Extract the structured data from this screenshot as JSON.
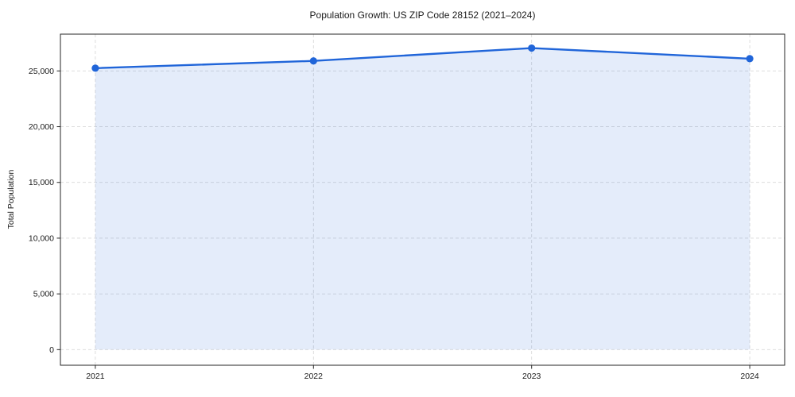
{
  "chart_data": {
    "type": "area",
    "title": "Population Growth: US ZIP Code 28152 (2021–2024)",
    "xlabel": "",
    "ylabel": "Total Population",
    "series_name": "Total Population",
    "categories": [
      "2021",
      "2022",
      "2023",
      "2024"
    ],
    "x": [
      2021,
      2022,
      2023,
      2024
    ],
    "values": [
      25250,
      25900,
      27050,
      26100
    ],
    "xlim": [
      2020.84,
      2024.16
    ],
    "ylim": [
      -1400,
      28300
    ],
    "yticks": [
      0,
      5000,
      10000,
      15000,
      20000,
      25000
    ],
    "ytick_labels": [
      "0",
      "5,000",
      "10,000",
      "15,000",
      "20,000",
      "25,000"
    ],
    "grid": true,
    "grid_style": "dashed",
    "legend_position": "none",
    "fill_baseline": 0,
    "colors": {
      "line": "#2065d9",
      "marker": "#2065d9",
      "fill": "#2065d9",
      "fill_opacity": 0.12,
      "grid": "#d9d9d9",
      "spine": "#262626",
      "text": "#1a1a1a"
    }
  }
}
